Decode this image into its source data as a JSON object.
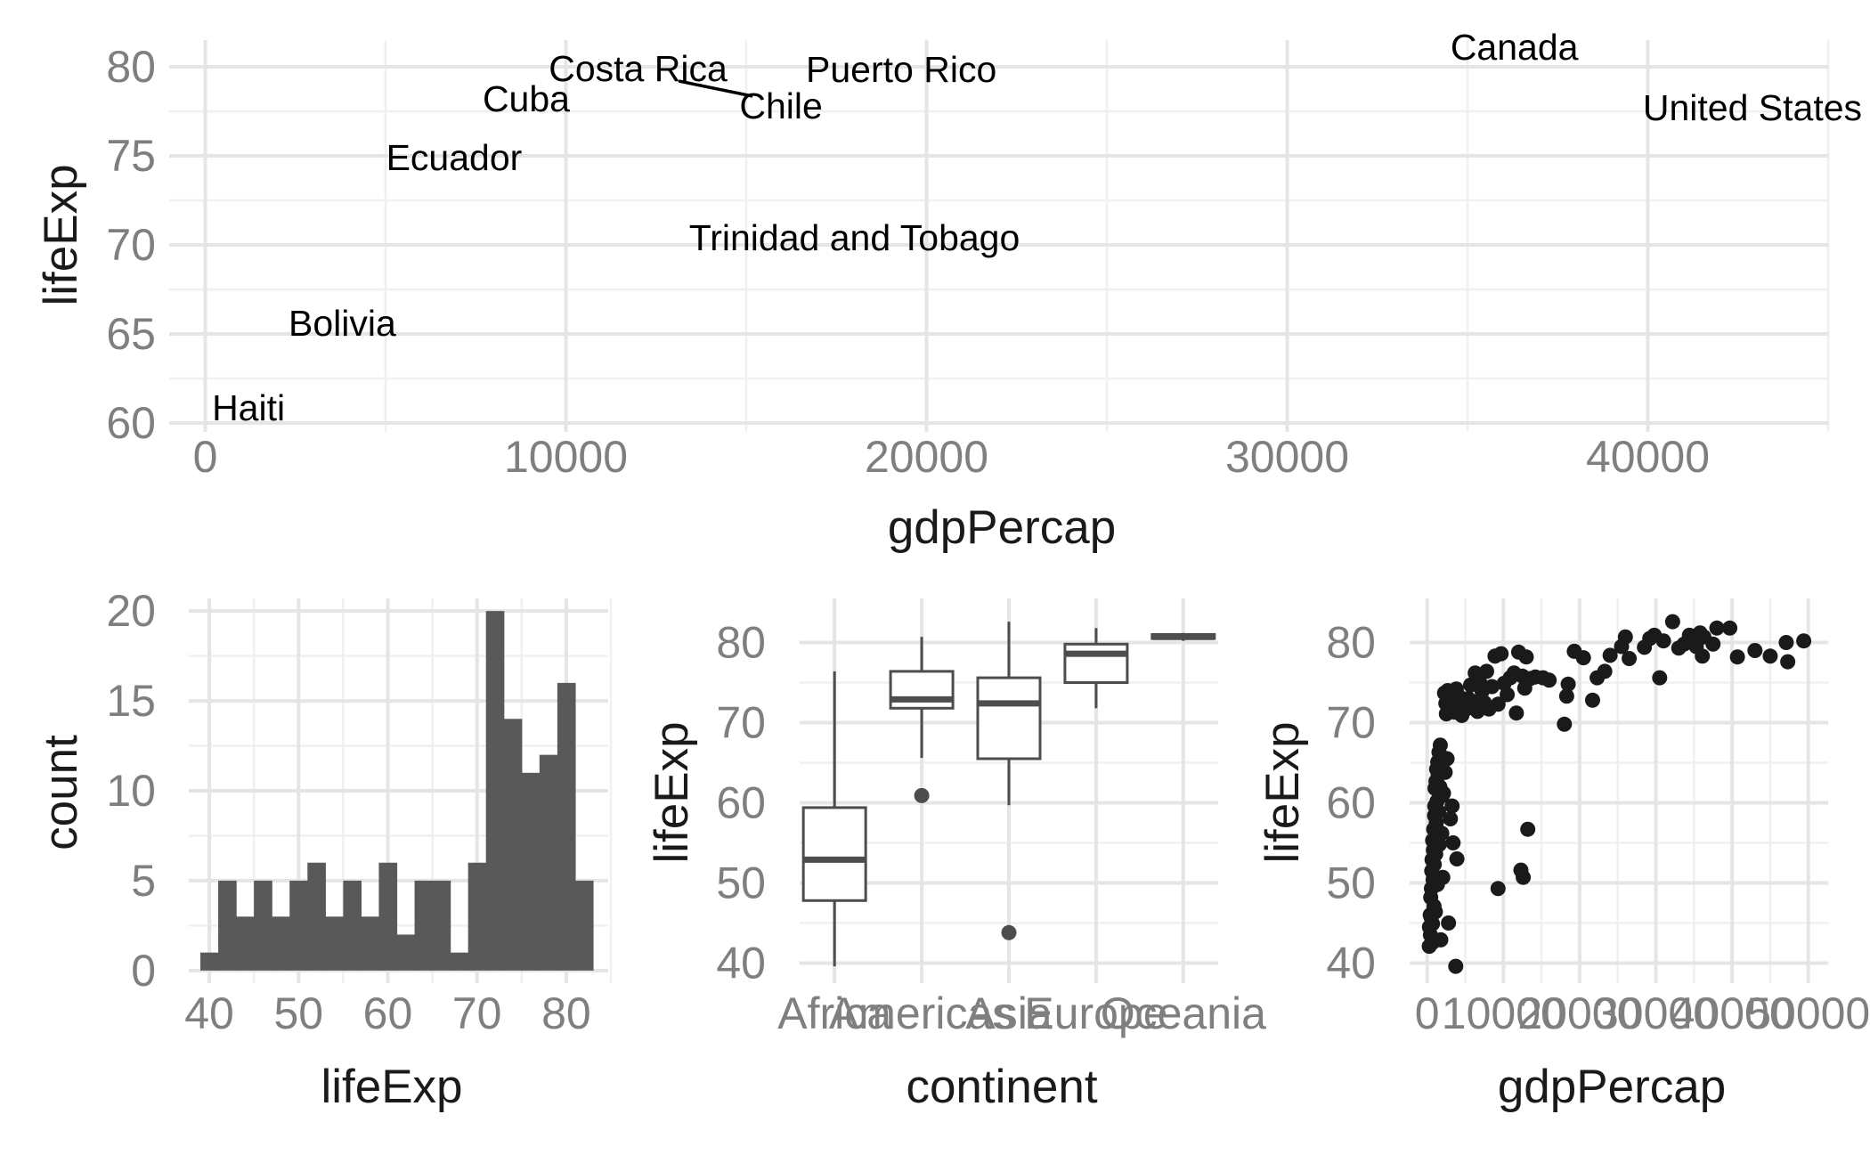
{
  "colors": {
    "background": "#ffffff",
    "grid_major": "#e5e5e5",
    "grid_minor": "#f0f0f0",
    "tick_text": "#7f7f7f",
    "title_text": "#1a1a1a",
    "bar_fill": "#595959",
    "box_line": "#4d4d4d",
    "point": "#1a1a1a"
  },
  "chart_data": [
    {
      "id": "labeled-scatter",
      "type": "scatter",
      "xlabel": "gdpPercap",
      "ylabel": "lifeExp",
      "xlim": [
        -1000,
        45000
      ],
      "ylim": [
        59.5,
        81.5
      ],
      "xticks": [
        0,
        10000,
        20000,
        30000,
        40000
      ],
      "xtick_labels": [
        "0",
        "10000",
        "20000",
        "30000",
        "40000"
      ],
      "yticks": [
        60,
        65,
        70,
        75,
        80
      ],
      "ytick_labels": [
        "60",
        "65",
        "70",
        "75",
        "80"
      ],
      "points": [
        {
          "label": "Costa Rica",
          "x": 12000,
          "y": 78.8
        },
        {
          "label": "Puerto Rico",
          "x": 19300,
          "y": 78.7
        },
        {
          "label": "Chile",
          "x": 13200,
          "y": 78.5
        },
        {
          "label": "Canada",
          "x": 36300,
          "y": 80.7
        },
        {
          "label": "Cuba",
          "x": 8900,
          "y": 78.3
        },
        {
          "label": "United States",
          "x": 42900,
          "y": 78.2
        },
        {
          "label": "Ecuador",
          "x": 6900,
          "y": 75.0
        },
        {
          "label": "Trinidad and Tobago",
          "x": 18000,
          "y": 69.8
        },
        {
          "label": "Bolivia",
          "x": 3800,
          "y": 65.6
        },
        {
          "label": "Haiti",
          "x": 1200,
          "y": 60.9
        }
      ]
    },
    {
      "id": "histogram",
      "type": "bar",
      "xlabel": "lifeExp",
      "ylabel": "count",
      "xlim": [
        37.7,
        84.7
      ],
      "ylim": [
        -0.7,
        20.7
      ],
      "xticks": [
        40,
        50,
        60,
        70,
        80
      ],
      "xtick_labels": [
        "40",
        "50",
        "60",
        "70",
        "80"
      ],
      "yticks": [
        0,
        5,
        10,
        15,
        20
      ],
      "ytick_labels": [
        "0",
        "5",
        "10",
        "15",
        "20"
      ],
      "bin_start": 39.0,
      "bin_width": 2.0,
      "values": [
        1,
        5,
        3,
        5,
        3,
        5,
        6,
        3,
        5,
        3,
        6,
        2,
        5,
        5,
        1,
        6,
        20,
        14,
        11,
        12,
        16,
        5
      ]
    },
    {
      "id": "boxplot",
      "type": "box",
      "xlabel": "continent",
      "ylabel": "lifeExp",
      "ylim": [
        37.5,
        85.5
      ],
      "yticks": [
        40,
        50,
        60,
        70,
        80
      ],
      "ytick_labels": [
        "40",
        "50",
        "60",
        "70",
        "80"
      ],
      "categories": [
        "Africa",
        "Americas",
        "Asia",
        "Europe",
        "Oceania"
      ],
      "boxes": [
        {
          "min": 39.6,
          "q1": 47.8,
          "median": 52.9,
          "q3": 59.4,
          "max": 76.4,
          "outliers": []
        },
        {
          "min": 65.6,
          "q1": 71.8,
          "median": 72.9,
          "q3": 76.4,
          "max": 80.7,
          "outliers": [
            60.9
          ]
        },
        {
          "min": 59.7,
          "q1": 65.5,
          "median": 72.4,
          "q3": 75.6,
          "max": 82.6,
          "outliers": [
            43.8
          ]
        },
        {
          "min": 71.8,
          "q1": 75.0,
          "median": 78.6,
          "q3": 79.8,
          "max": 81.8,
          "outliers": []
        },
        {
          "min": 80.2,
          "q1": 80.5,
          "median": 80.7,
          "q3": 81.0,
          "max": 81.2,
          "outliers": []
        }
      ]
    },
    {
      "id": "scatter-all",
      "type": "scatter",
      "xlabel": "gdpPercap",
      "ylabel": "lifeExp",
      "xlim": [
        -2300,
        52600
      ],
      "ylim": [
        37.5,
        85.5
      ],
      "xticks": [
        0,
        10000,
        20000,
        30000,
        40000,
        50000
      ],
      "xtick_labels": [
        "0",
        "10000",
        "20000",
        "30000",
        "40000",
        "50000"
      ],
      "yticks": [
        40,
        50,
        60,
        70,
        80
      ],
      "ytick_labels": [
        "40",
        "50",
        "60",
        "70",
        "80"
      ],
      "points": [
        [
          277,
          42.1
        ],
        [
          300,
          44.5
        ],
        [
          400,
          46.0
        ],
        [
          430,
          43.5
        ],
        [
          470,
          48.2
        ],
        [
          520,
          45.7
        ],
        [
          560,
          49.3
        ],
        [
          600,
          51.5
        ],
        [
          640,
          52.9
        ],
        [
          700,
          44.9
        ],
        [
          720,
          55.3
        ],
        [
          750,
          42.6
        ],
        [
          780,
          50.4
        ],
        [
          820,
          54.1
        ],
        [
          860,
          56.7
        ],
        [
          900,
          47.1
        ],
        [
          930,
          52.3
        ],
        [
          970,
          58.4
        ],
        [
          1000,
          59.6
        ],
        [
          1030,
          61.8
        ],
        [
          1080,
          46.4
        ],
        [
          1120,
          53.6
        ],
        [
          1160,
          62.7
        ],
        [
          1200,
          57.5
        ],
        [
          1240,
          64.2
        ],
        [
          1290,
          60.2
        ],
        [
          1340,
          49.8
        ],
        [
          1390,
          65.1
        ],
        [
          1440,
          63.4
        ],
        [
          1500,
          58.9
        ],
        [
          1550,
          66.3
        ],
        [
          1600,
          54.8
        ],
        [
          1660,
          62.0
        ],
        [
          1720,
          67.2
        ],
        [
          1790,
          42.9
        ],
        [
          1850,
          64.6
        ],
        [
          1920,
          56.2
        ],
        [
          1990,
          60.9
        ],
        [
          2050,
          50.7
        ],
        [
          2140,
          61.2
        ],
        [
          2200,
          65.6
        ],
        [
          2280,
          73.7
        ],
        [
          2360,
          63.8
        ],
        [
          2450,
          72.4
        ],
        [
          2520,
          71.1
        ],
        [
          2610,
          65.5
        ],
        [
          2700,
          74.0
        ],
        [
          2800,
          45.0
        ],
        [
          2880,
          72.9
        ],
        [
          2970,
          71.6
        ],
        [
          3050,
          58.0
        ],
        [
          3150,
          73.2
        ],
        [
          3270,
          59.6
        ],
        [
          3400,
          55.0
        ],
        [
          3520,
          72.0
        ],
        [
          3630,
          71.3
        ],
        [
          3750,
          39.6
        ],
        [
          3820,
          74.2
        ],
        [
          3900,
          53.0
        ],
        [
          4050,
          73.4
        ],
        [
          4150,
          71.9
        ],
        [
          4300,
          72.8
        ],
        [
          4550,
          70.9
        ],
        [
          4800,
          72.2
        ],
        [
          5100,
          71.7
        ],
        [
          5400,
          73.0
        ],
        [
          5700,
          74.7
        ],
        [
          6000,
          72.6
        ],
        [
          6300,
          76.2
        ],
        [
          6600,
          71.4
        ],
        [
          6900,
          75.0
        ],
        [
          7200,
          73.9
        ],
        [
          7500,
          72.5
        ],
        [
          7800,
          76.4
        ],
        [
          8100,
          71.7
        ],
        [
          8500,
          74.5
        ],
        [
          8900,
          78.3
        ],
        [
          9300,
          72.3
        ],
        [
          9300,
          49.3
        ],
        [
          9700,
          78.6
        ],
        [
          10100,
          74.9
        ],
        [
          10500,
          73.5
        ],
        [
          10900,
          75.6
        ],
        [
          11400,
          76.2
        ],
        [
          11700,
          71.2
        ],
        [
          12000,
          78.8
        ],
        [
          12300,
          51.6
        ],
        [
          12500,
          75.8
        ],
        [
          12600,
          50.7
        ],
        [
          12800,
          74.3
        ],
        [
          13000,
          78.2
        ],
        [
          13200,
          56.7
        ],
        [
          13500,
          75.5
        ],
        [
          14200,
          75.7
        ],
        [
          15200,
          75.6
        ],
        [
          16000,
          75.3
        ],
        [
          18000,
          69.8
        ],
        [
          18300,
          73.3
        ],
        [
          18500,
          74.8
        ],
        [
          19300,
          78.9
        ],
        [
          20500,
          78.1
        ],
        [
          21700,
          72.8
        ],
        [
          22300,
          75.6
        ],
        [
          23300,
          76.4
        ],
        [
          24000,
          78.4
        ],
        [
          25500,
          79.5
        ],
        [
          26000,
          80.7
        ],
        [
          26500,
          78.0
        ],
        [
          28500,
          79.4
        ],
        [
          29200,
          80.5
        ],
        [
          29800,
          80.9
        ],
        [
          30500,
          75.6
        ],
        [
          31000,
          80.2
        ],
        [
          32200,
          82.6
        ],
        [
          33000,
          79.3
        ],
        [
          33700,
          79.8
        ],
        [
          34400,
          80.9
        ],
        [
          35300,
          79.5
        ],
        [
          35800,
          81.2
        ],
        [
          36300,
          80.7
        ],
        [
          36100,
          78.3
        ],
        [
          37500,
          79.8
        ],
        [
          38000,
          81.8
        ],
        [
          39700,
          81.8
        ],
        [
          40700,
          78.2
        ],
        [
          43000,
          79.0
        ],
        [
          45000,
          78.3
        ],
        [
          47100,
          80.0
        ],
        [
          47300,
          77.6
        ],
        [
          49400,
          80.2
        ]
      ]
    }
  ]
}
